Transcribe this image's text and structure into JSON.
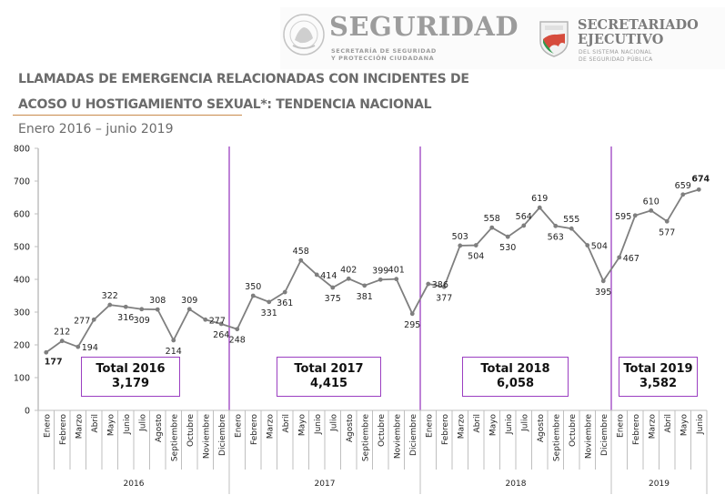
{
  "header": {
    "seal_lettering": "ESTADOS UNIDOS MEXICANOS",
    "brand_left": {
      "name": "SEGURIDAD",
      "sub_line1": "SECRETARÍA DE SEGURIDAD",
      "sub_line2": "Y PROTECCIÓN CIUDADANA"
    },
    "brand_right": {
      "name_line1": "SECRETARIADO",
      "name_line2": "EJECUTIVO",
      "sub_line1": "DEL SISTEMA NACIONAL",
      "sub_line2": "DE SEGURIDAD PÚBLICA"
    }
  },
  "title": {
    "line1": "LLAMADAS DE EMERGENCIA RELACIONADAS CON INCIDENTES DE",
    "line2": "ACOSO U HOSTIGAMIENTO SEXUAL*: TENDENCIA NACIONAL",
    "subtitle": "Enero 2016 – junio 2019",
    "underline_color": "#c98a4b"
  },
  "totals": [
    {
      "label": "Total 2016",
      "value": "3,179"
    },
    {
      "label": "Total 2017",
      "value": "4,415"
    },
    {
      "label": "Total 2018",
      "value": "6,058"
    },
    {
      "label": "Total 2019",
      "value": "3,582"
    }
  ],
  "chart_data": {
    "type": "line",
    "title": "Llamadas de emergencia relacionadas con incidentes de acoso u hostigamiento sexual",
    "xlabel": "",
    "ylabel": "",
    "ylim": [
      0,
      800
    ],
    "yticks": [
      0,
      100,
      200,
      300,
      400,
      500,
      600,
      700,
      800
    ],
    "grid": false,
    "colors": {
      "line": "#7f7f7f",
      "separator": "#9b3fc1",
      "min_label": "#00b050",
      "max_label": "#ff0000",
      "axis": "#bfbfbf"
    },
    "years": [
      {
        "year": "2016",
        "months": [
          "Enero",
          "Febrero",
          "Marzo",
          "Abril",
          "Mayo",
          "Junio",
          "Julio",
          "Agosto",
          "Septiembre",
          "Octubre",
          "Noviembre",
          "Diciembre"
        ]
      },
      {
        "year": "2017",
        "months": [
          "Enero",
          "Febrero",
          "Marzo",
          "Abril",
          "Mayo",
          "Junio",
          "Julio",
          "Agosto",
          "Septiembre",
          "Octubre",
          "Noviembre",
          "Diciembre"
        ]
      },
      {
        "year": "2018",
        "months": [
          "Enero",
          "Febrero",
          "Marzo",
          "Abril",
          "Mayo",
          "Junio",
          "Julio",
          "Agosto",
          "Septiembre",
          "Octubre",
          "Noviembre",
          "Diciembre"
        ]
      },
      {
        "year": "2019",
        "months": [
          "Enero",
          "Febrero",
          "Marzo",
          "Abril",
          "Mayo",
          "Junio"
        ]
      }
    ],
    "series": [
      {
        "name": "Llamadas",
        "values": [
          177,
          212,
          194,
          277,
          322,
          316,
          309,
          308,
          214,
          309,
          277,
          264,
          248,
          350,
          331,
          361,
          458,
          414,
          375,
          402,
          381,
          399,
          401,
          295,
          386,
          377,
          503,
          504,
          558,
          530,
          564,
          619,
          563,
          555,
          504,
          395,
          467,
          595,
          610,
          577,
          659,
          674
        ]
      }
    ],
    "label_positions": [
      "below",
      "above",
      "right",
      "left",
      "above",
      "below",
      "below",
      "above",
      "below",
      "above",
      "right",
      "below",
      "below",
      "above",
      "below",
      "below",
      "above",
      "right",
      "below",
      "above",
      "below",
      "above",
      "above",
      "below",
      "right",
      "below",
      "above",
      "below",
      "above",
      "below",
      "above",
      "above",
      "below",
      "above",
      "right",
      "below",
      "right",
      "left",
      "above",
      "below",
      "above",
      "above"
    ],
    "highlight": {
      "min_index": 0,
      "max_index": 41
    }
  }
}
